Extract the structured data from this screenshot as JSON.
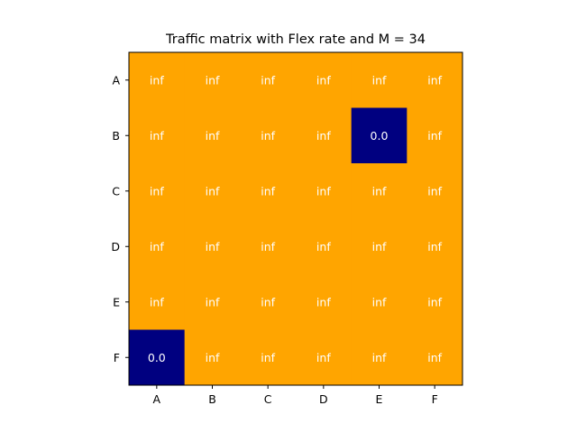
{
  "chart_data": {
    "type": "heatmap",
    "title": "Traffic matrix with Flex rate and M = 34",
    "xlabel": "",
    "ylabel": "",
    "x_categories": [
      "A",
      "B",
      "C",
      "D",
      "E",
      "F"
    ],
    "y_categories": [
      "A",
      "B",
      "C",
      "D",
      "E",
      "F"
    ],
    "values": [
      [
        "inf",
        "inf",
        "inf",
        "inf",
        "inf",
        "inf"
      ],
      [
        "inf",
        "inf",
        "inf",
        "inf",
        "0.0",
        "inf"
      ],
      [
        "inf",
        "inf",
        "inf",
        "inf",
        "inf",
        "inf"
      ],
      [
        "inf",
        "inf",
        "inf",
        "inf",
        "inf",
        "inf"
      ],
      [
        "inf",
        "inf",
        "inf",
        "inf",
        "inf",
        "inf"
      ],
      [
        "0.0",
        "inf",
        "inf",
        "inf",
        "inf",
        "inf"
      ]
    ],
    "colors": {
      "inf": "#ffa500",
      "zero": "#000080",
      "label": "#ffffff"
    },
    "grid": false,
    "legend": "none"
  }
}
